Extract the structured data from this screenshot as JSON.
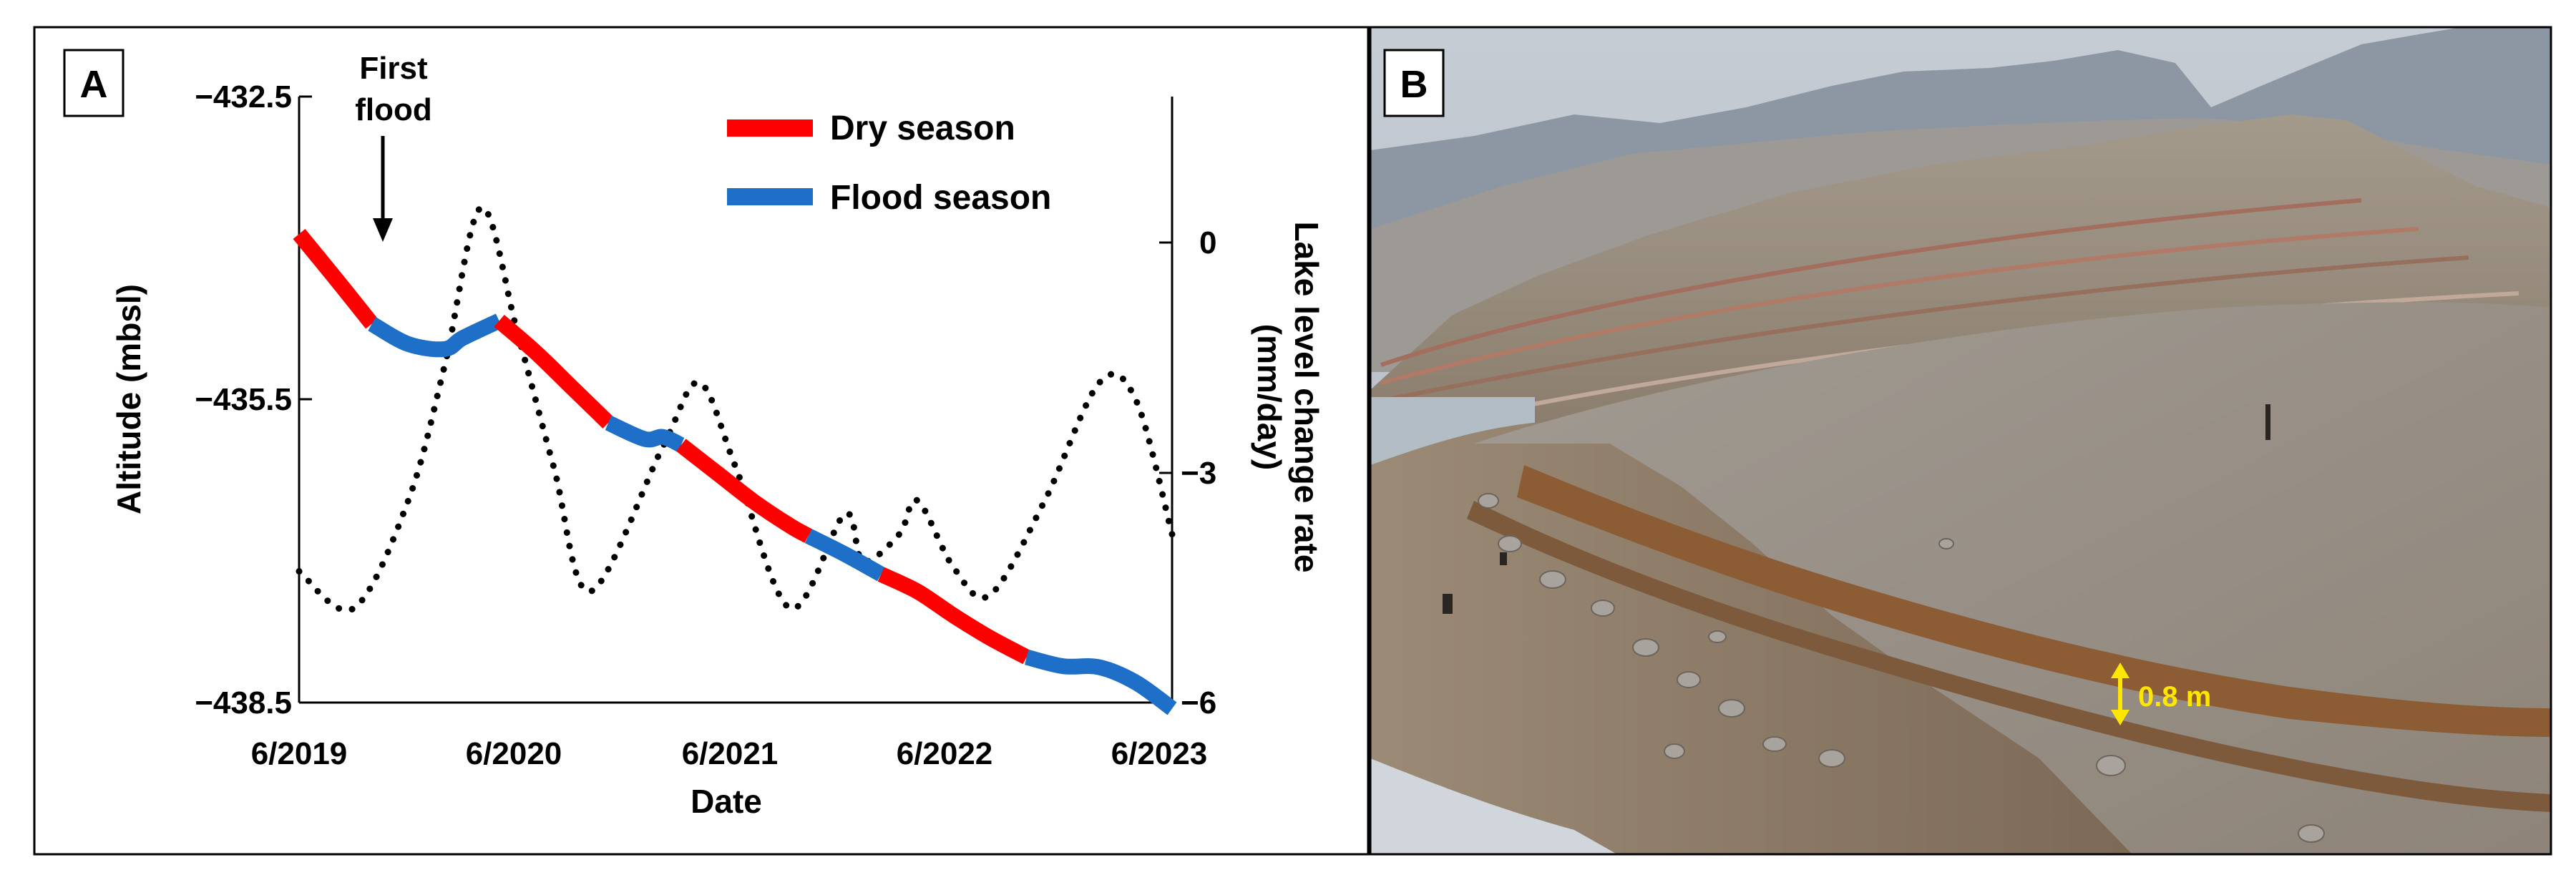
{
  "panels": {
    "a": {
      "label": "A"
    },
    "b": {
      "label": "B",
      "annotation": "0.8 m",
      "annotation_color": "#ffe600"
    }
  },
  "first_flood_label": [
    "First",
    "flood"
  ],
  "chart_data": {
    "type": "line",
    "xlabel": "Date",
    "ylabel_left": "Altitude (mbsl)",
    "ylabel_right": [
      "Lake level change rate",
      "(mm/day)"
    ],
    "x_range": [
      "2019-06",
      "2023-06"
    ],
    "x_ticks": [
      "6/2019",
      "6/2020",
      "6/2021",
      "6/2022",
      "6/2023"
    ],
    "ylim_left": [
      -438.5,
      -432.5
    ],
    "yticks_left": [
      "−432.5",
      "−435.5",
      "−438.5"
    ],
    "ylim_right": [
      -6,
      3
    ],
    "yticks_right": [
      "0",
      "−3",
      "−6"
    ],
    "legend": [
      {
        "name": "Dry season",
        "color": "#ff0000"
      },
      {
        "name": "Flood season",
        "color": "#1e6fc8"
      }
    ],
    "legend_position": "top-right",
    "grid": false,
    "altitude_series": [
      {
        "season": "dry",
        "points": [
          [
            "2019-06",
            -433.86
          ],
          [
            "2019-08",
            -434.3
          ],
          [
            "2019-10",
            -434.75
          ]
        ]
      },
      {
        "season": "flood",
        "points": [
          [
            "2019-10",
            -434.75
          ],
          [
            "2019-12",
            -434.95
          ],
          [
            "2020-02",
            -435.0
          ],
          [
            "2020-03",
            -434.89
          ],
          [
            "2020-05",
            -434.72
          ]
        ]
      },
      {
        "season": "dry",
        "points": [
          [
            "2020-05",
            -434.72
          ],
          [
            "2020-07",
            -435.03
          ],
          [
            "2020-09",
            -435.38
          ],
          [
            "2020-11",
            -435.73
          ]
        ]
      },
      {
        "season": "flood",
        "points": [
          [
            "2020-11",
            -435.73
          ],
          [
            "2021-01",
            -435.89
          ],
          [
            "2021-02",
            -435.87
          ],
          [
            "2021-03",
            -435.95
          ]
        ]
      },
      {
        "season": "dry",
        "points": [
          [
            "2021-03",
            -435.95
          ],
          [
            "2021-05",
            -436.23
          ],
          [
            "2021-07",
            -436.51
          ],
          [
            "2021-09",
            -436.75
          ],
          [
            "2021-10",
            -436.85
          ]
        ]
      },
      {
        "season": "flood",
        "points": [
          [
            "2021-10",
            -436.85
          ],
          [
            "2021-12",
            -437.03
          ],
          [
            "2022-02",
            -437.23
          ]
        ]
      },
      {
        "season": "dry",
        "points": [
          [
            "2022-02",
            -437.23
          ],
          [
            "2022-04",
            -437.4
          ],
          [
            "2022-06",
            -437.64
          ],
          [
            "2022-08",
            -437.86
          ],
          [
            "2022-10",
            -438.05
          ]
        ]
      },
      {
        "season": "flood",
        "points": [
          [
            "2022-10",
            -438.05
          ],
          [
            "2022-12",
            -438.14
          ],
          [
            "2023-02",
            -438.15
          ],
          [
            "2023-04",
            -438.3
          ],
          [
            "2023-06",
            -438.56
          ]
        ]
      }
    ],
    "rate_series": {
      "style": "dotted",
      "color": "#000000",
      "points": [
        [
          "2019-06",
          -4.05
        ],
        [
          "2019-09",
          -4.6
        ],
        [
          "2019-12",
          -3.0
        ],
        [
          "2020-02",
          -1.0
        ],
        [
          "2020-04",
          1.35
        ],
        [
          "2020-06",
          -0.5
        ],
        [
          "2020-08",
          -2.5
        ],
        [
          "2020-10",
          -4.35
        ],
        [
          "2021-02",
          -2.2
        ],
        [
          "2021-04",
          -1.25
        ],
        [
          "2021-06",
          -2.5
        ],
        [
          "2021-09",
          -4.6
        ],
        [
          "2021-12",
          -3.2
        ],
        [
          "2022-01",
          -3.9
        ],
        [
          "2022-03",
          -3.5
        ],
        [
          "2022-04",
          -3.0
        ],
        [
          "2022-06",
          -4.0
        ],
        [
          "2022-08",
          -4.4
        ],
        [
          "2022-11",
          -3.0
        ],
        [
          "2023-02",
          -1.25
        ],
        [
          "2023-04",
          -1.5
        ],
        [
          "2023-06",
          -3.5
        ]
      ]
    },
    "first_flood_date": "2019-10"
  }
}
